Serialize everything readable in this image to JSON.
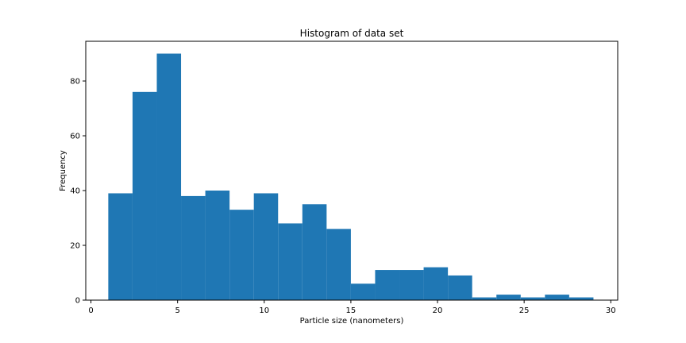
{
  "chart_data": {
    "type": "bar",
    "title": "Histogram of data set",
    "xlabel": "Particle size (nanometers)",
    "ylabel": "Frequency",
    "xlim": [
      -0.3,
      30.4
    ],
    "ylim": [
      0,
      94.5
    ],
    "xticks": [
      0,
      5,
      10,
      15,
      20,
      25,
      30
    ],
    "yticks": [
      0,
      20,
      40,
      60,
      80
    ],
    "bins": [
      {
        "x0": 1.0,
        "x1": 2.4,
        "count": 39
      },
      {
        "x0": 2.4,
        "x1": 3.8,
        "count": 76
      },
      {
        "x0": 3.8,
        "x1": 5.2,
        "count": 90
      },
      {
        "x0": 5.2,
        "x1": 6.6,
        "count": 38
      },
      {
        "x0": 6.6,
        "x1": 8.0,
        "count": 40
      },
      {
        "x0": 8.0,
        "x1": 9.4,
        "count": 33
      },
      {
        "x0": 9.4,
        "x1": 10.8,
        "count": 39
      },
      {
        "x0": 10.8,
        "x1": 12.2,
        "count": 28
      },
      {
        "x0": 12.2,
        "x1": 13.6,
        "count": 35
      },
      {
        "x0": 13.6,
        "x1": 15.0,
        "count": 26
      },
      {
        "x0": 15.0,
        "x1": 16.4,
        "count": 6
      },
      {
        "x0": 16.4,
        "x1": 17.8,
        "count": 11
      },
      {
        "x0": 17.8,
        "x1": 19.2,
        "count": 11
      },
      {
        "x0": 19.2,
        "x1": 20.6,
        "count": 12
      },
      {
        "x0": 20.6,
        "x1": 22.0,
        "count": 9
      },
      {
        "x0": 22.0,
        "x1": 23.4,
        "count": 1
      },
      {
        "x0": 23.4,
        "x1": 24.8,
        "count": 2
      },
      {
        "x0": 24.8,
        "x1": 26.2,
        "count": 1
      },
      {
        "x0": 26.2,
        "x1": 27.6,
        "count": 2
      },
      {
        "x0": 27.6,
        "x1": 29.0,
        "count": 1
      }
    ],
    "bar_color": "#1f77b4",
    "grid": false,
    "legend": "none"
  }
}
